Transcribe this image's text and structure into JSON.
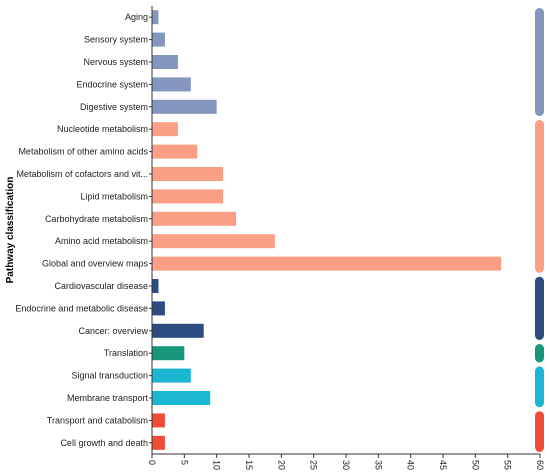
{
  "chart_data": {
    "type": "bar",
    "orientation": "horizontal",
    "ylabel": "Pathway classification",
    "xlabel": "",
    "xlim": [
      0,
      60
    ],
    "x_ticks": [
      0,
      5,
      10,
      15,
      20,
      25,
      30,
      35,
      40,
      45,
      50,
      55,
      60
    ],
    "grid": false,
    "categories": [
      "Aging",
      "Sensory system",
      "Nervous system",
      "Endocrine system",
      "Digestive system",
      "Nucleotide metabolism",
      "Metabolism of other amino acids",
      "Metabolism of cofactors and vit...",
      "Lipid metabolism",
      "Carbohydrate metabolism",
      "Amino acid metabolism",
      "Global and overview maps",
      "Cardiovascular disease",
      "Endocrine and metabolic disease",
      "Cancer: overview",
      "Translation",
      "Signal transduction",
      "Membrane transport",
      "Transport and catabolism",
      "Cell growth and death"
    ],
    "values": [
      1,
      2,
      4,
      6,
      10,
      4,
      7,
      11,
      11,
      13,
      19,
      54,
      1,
      2,
      8,
      5,
      6,
      9,
      2,
      2
    ],
    "groups": [
      {
        "color": "#8496bd",
        "start": 0,
        "end": 4
      },
      {
        "color": "#fa9e86",
        "start": 5,
        "end": 11
      },
      {
        "color": "#2d4c82",
        "start": 12,
        "end": 14
      },
      {
        "color": "#17967c",
        "start": 15,
        "end": 15
      },
      {
        "color": "#1ab6d2",
        "start": 16,
        "end": 17
      },
      {
        "color": "#f04d36",
        "start": 18,
        "end": 19
      }
    ]
  }
}
